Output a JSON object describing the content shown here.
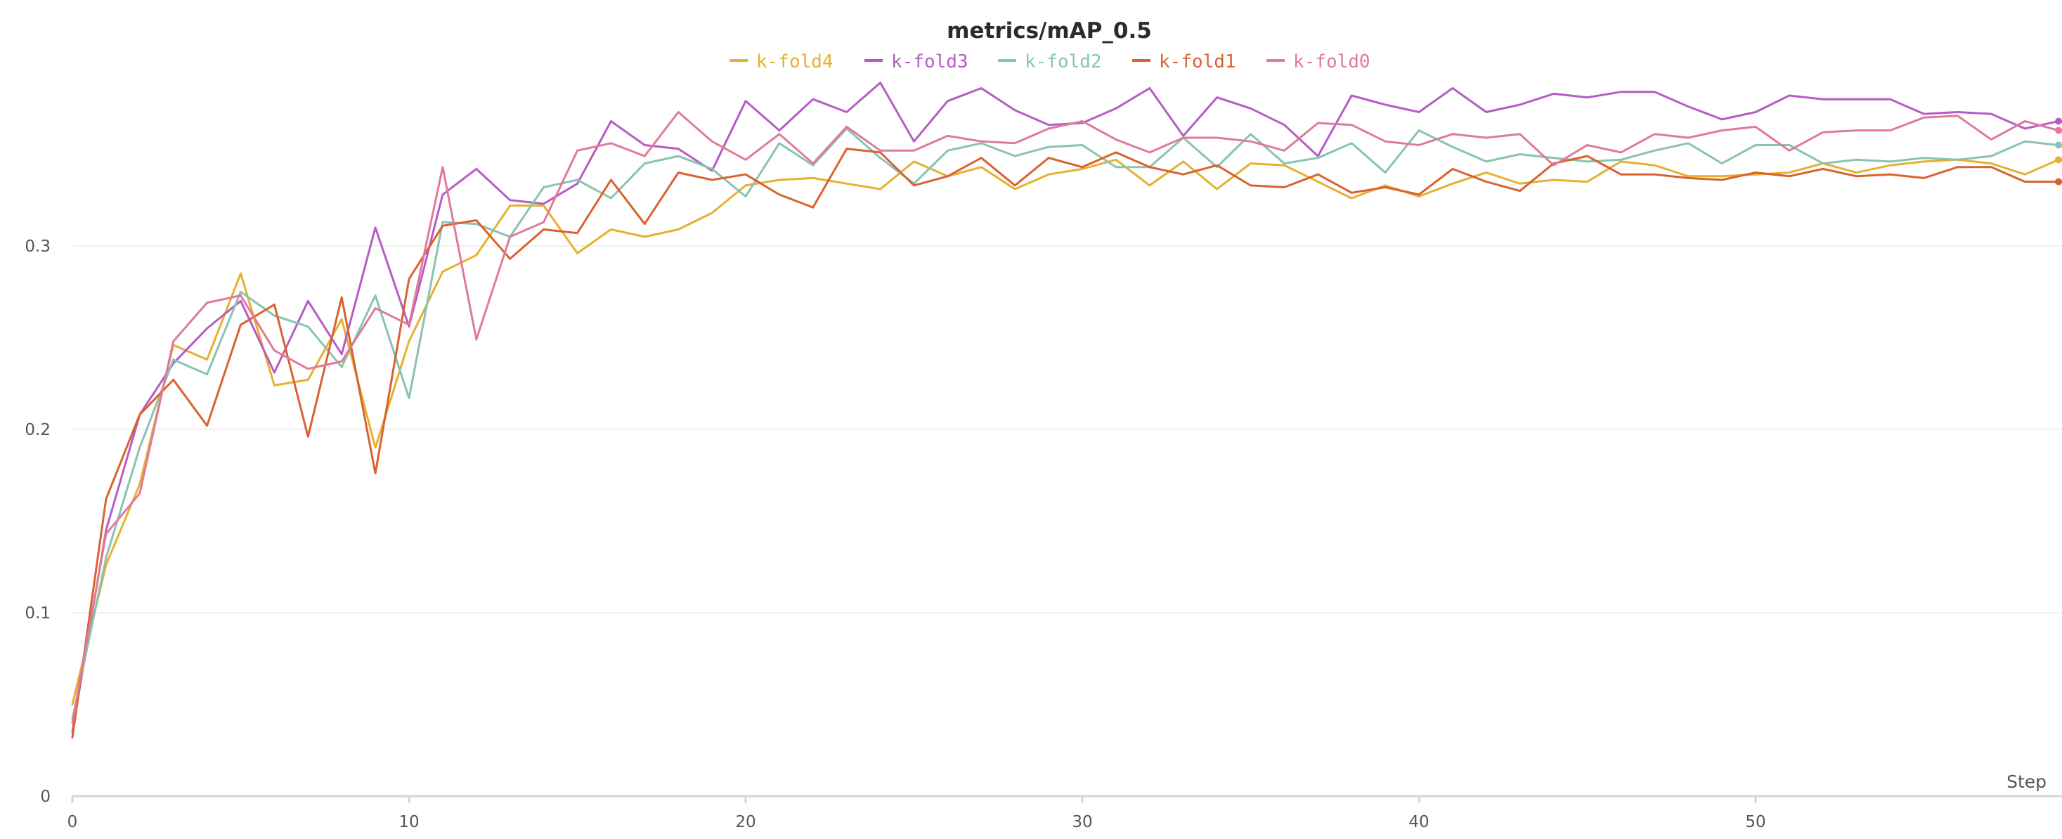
{
  "chart_data": {
    "type": "line",
    "title": "metrics/mAP_0.5",
    "xlabel": "Step",
    "ylabel": "",
    "xlim": [
      0,
      59
    ],
    "ylim": [
      0,
      0.39
    ],
    "x_ticks": [
      0,
      10,
      20,
      30,
      40,
      50
    ],
    "y_ticks": [
      0,
      0.1,
      0.2,
      0.3
    ],
    "y_tick_labels": [
      "0",
      "0.1",
      "0.2",
      "0.3"
    ],
    "grid": true,
    "legend_position": "top-center",
    "x": [
      0,
      1,
      2,
      3,
      4,
      5,
      6,
      7,
      8,
      9,
      10,
      11,
      12,
      13,
      14,
      15,
      16,
      17,
      18,
      19,
      20,
      21,
      22,
      23,
      24,
      25,
      26,
      27,
      28,
      29,
      30,
      31,
      32,
      33,
      34,
      35,
      36,
      37,
      38,
      39,
      40,
      41,
      42,
      43,
      44,
      45,
      46,
      47,
      48,
      49,
      50,
      51,
      52,
      53,
      54,
      55,
      56,
      57,
      58,
      59
    ],
    "series": [
      {
        "name": "k-fold4",
        "color": "#e6b030",
        "values": [
          0.05,
          0.126,
          0.17,
          0.246,
          0.238,
          0.285,
          0.224,
          0.227,
          0.26,
          0.19,
          0.248,
          0.286,
          0.295,
          0.322,
          0.322,
          0.296,
          0.309,
          0.305,
          0.309,
          0.318,
          0.333,
          0.336,
          0.337,
          0.334,
          0.331,
          0.346,
          0.338,
          0.343,
          0.331,
          0.339,
          0.342,
          0.347,
          0.333,
          0.346,
          0.331,
          0.345,
          0.344,
          0.335,
          0.326,
          0.333,
          0.327,
          0.334,
          0.34,
          0.334,
          0.336,
          0.335,
          0.346,
          0.344,
          0.338,
          0.338,
          0.339,
          0.34,
          0.345,
          0.34,
          0.344,
          0.346,
          0.347,
          0.345,
          0.339,
          0.347
        ]
      },
      {
        "name": "k-fold3",
        "color": "#b65cc5",
        "values": [
          0.035,
          0.145,
          0.208,
          0.236,
          0.255,
          0.27,
          0.231,
          0.27,
          0.241,
          0.31,
          0.256,
          0.328,
          0.342,
          0.325,
          0.323,
          0.334,
          0.368,
          0.355,
          0.353,
          0.341,
          0.379,
          0.363,
          0.38,
          0.373,
          0.389,
          0.357,
          0.379,
          0.386,
          0.374,
          0.366,
          0.367,
          0.375,
          0.386,
          0.36,
          0.381,
          0.375,
          0.366,
          0.349,
          0.382,
          0.377,
          0.373,
          0.386,
          0.373,
          0.377,
          0.383,
          0.381,
          0.384,
          0.384,
          0.376,
          0.369,
          0.373,
          0.382,
          0.38,
          0.38,
          0.38,
          0.372,
          0.373,
          0.372,
          0.364,
          0.368
        ]
      },
      {
        "name": "k-fold2",
        "color": "#88c4b0",
        "values": [
          0.042,
          0.13,
          0.19,
          0.238,
          0.23,
          0.275,
          0.262,
          0.256,
          0.234,
          0.273,
          0.217,
          0.313,
          0.312,
          0.305,
          0.332,
          0.336,
          0.326,
          0.345,
          0.349,
          0.342,
          0.327,
          0.356,
          0.344,
          0.364,
          0.348,
          0.334,
          0.352,
          0.356,
          0.349,
          0.354,
          0.355,
          0.343,
          0.343,
          0.359,
          0.343,
          0.361,
          0.345,
          0.348,
          0.356,
          0.34,
          0.363,
          0.354,
          0.346,
          0.35,
          0.348,
          0.346,
          0.347,
          0.352,
          0.356,
          0.345,
          0.355,
          0.355,
          0.345,
          0.347,
          0.346,
          0.348,
          0.347,
          0.349,
          0.357,
          0.355
        ]
      },
      {
        "name": "k-fold1",
        "color": "#d9622f",
        "values": [
          0.032,
          0.162,
          0.208,
          0.227,
          0.202,
          0.257,
          0.268,
          0.196,
          0.272,
          0.176,
          0.282,
          0.311,
          0.314,
          0.293,
          0.309,
          0.307,
          0.336,
          0.312,
          0.34,
          0.336,
          0.339,
          0.328,
          0.321,
          0.353,
          0.351,
          0.333,
          0.338,
          0.348,
          0.333,
          0.348,
          0.343,
          0.351,
          0.343,
          0.339,
          0.344,
          0.333,
          0.332,
          0.339,
          0.329,
          0.332,
          0.328,
          0.342,
          0.335,
          0.33,
          0.345,
          0.349,
          0.339,
          0.339,
          0.337,
          0.336,
          0.34,
          0.338,
          0.342,
          0.338,
          0.339,
          0.337,
          0.343,
          0.343,
          0.335,
          0.335
        ]
      },
      {
        "name": "k-fold0",
        "color": "#e07a9a",
        "values": [
          0.04,
          0.143,
          0.165,
          0.248,
          0.269,
          0.273,
          0.243,
          0.233,
          0.237,
          0.266,
          0.257,
          0.343,
          0.249,
          0.305,
          0.313,
          0.352,
          0.356,
          0.349,
          0.373,
          0.357,
          0.347,
          0.361,
          0.345,
          0.365,
          0.352,
          0.352,
          0.36,
          0.357,
          0.356,
          0.364,
          0.368,
          0.358,
          0.351,
          0.359,
          0.359,
          0.357,
          0.352,
          0.367,
          0.366,
          0.357,
          0.355,
          0.361,
          0.359,
          0.361,
          0.344,
          0.355,
          0.351,
          0.361,
          0.359,
          0.363,
          0.365,
          0.352,
          0.362,
          0.363,
          0.363,
          0.37,
          0.371,
          0.358,
          0.368,
          0.363
        ]
      }
    ]
  }
}
